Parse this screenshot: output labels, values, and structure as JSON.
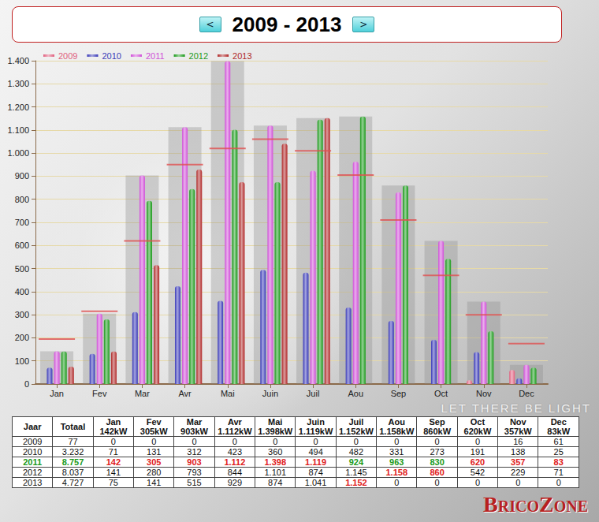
{
  "chart_data": {
    "type": "bar",
    "title": "2009 - 2013",
    "categories": [
      "Jan",
      "Fev",
      "Mar",
      "Avr",
      "Mai",
      "Juin",
      "Juil",
      "Aou",
      "Sep",
      "Oct",
      "Nov",
      "Dec"
    ],
    "series": [
      {
        "name": "2009",
        "color": "#e0607e",
        "values": [
          0,
          0,
          0,
          0,
          0,
          0,
          0,
          0,
          0,
          0,
          16,
          61
        ]
      },
      {
        "name": "2010",
        "color": "#3a3ab8",
        "values": [
          71,
          131,
          312,
          423,
          360,
          494,
          482,
          331,
          273,
          191,
          138,
          25
        ]
      },
      {
        "name": "2011",
        "color": "#d050d8",
        "values": [
          142,
          305,
          903,
          1112,
          1398,
          1119,
          924,
          963,
          830,
          620,
          357,
          83
        ]
      },
      {
        "name": "2012",
        "color": "#1a9a1a",
        "values": [
          141,
          280,
          793,
          844,
          1101,
          874,
          1145,
          1158,
          860,
          542,
          229,
          71
        ]
      },
      {
        "name": "2013",
        "color": "#b02828",
        "values": [
          75,
          141,
          515,
          929,
          874,
          1041,
          1152,
          0,
          0,
          0,
          0,
          0
        ]
      }
    ],
    "max_values": [
      142,
      305,
      903,
      1112,
      1398,
      1119,
      1152,
      1158,
      860,
      620,
      357,
      83
    ],
    "target_values": [
      195,
      315,
      620,
      950,
      1020,
      1060,
      1010,
      905,
      710,
      470,
      300,
      175
    ],
    "ylim": [
      0,
      1400
    ],
    "yticks": [
      0,
      100,
      200,
      300,
      400,
      500,
      600,
      700,
      800,
      900,
      {
        "value": 1000,
        "label": "1.000"
      },
      {
        "value": 1100,
        "label": "1.100"
      },
      {
        "value": 1200,
        "label": "1.200"
      },
      {
        "value": 1300,
        "label": "1.300"
      },
      {
        "value": 1400,
        "label": "1.400"
      }
    ],
    "grid": true,
    "legend": "top-left"
  },
  "nav": {
    "prev": "<",
    "next": ">"
  },
  "table": {
    "header": [
      [
        "Jaar"
      ],
      [
        "Totaal"
      ],
      [
        "Jan",
        "142kW"
      ],
      [
        "Fev",
        "305kW"
      ],
      [
        "Mar",
        "903kW"
      ],
      [
        "Avr",
        "1.112kW"
      ],
      [
        "Mai",
        "1.398kW"
      ],
      [
        "Juin",
        "1.119kW"
      ],
      [
        "Juil",
        "1.152kW"
      ],
      [
        "Aou",
        "1.158kW"
      ],
      [
        "Sep",
        "860kW"
      ],
      [
        "Oct",
        "620kW"
      ],
      [
        "Nov",
        "357kW"
      ],
      [
        "Dec",
        "83kW"
      ]
    ],
    "rows": [
      [
        "2009",
        "77",
        "0",
        "0",
        "0",
        "0",
        "0",
        "0",
        "0",
        "0",
        "0",
        "0",
        "16",
        "61"
      ],
      [
        "2010",
        "3.232",
        "71",
        "131",
        "312",
        "423",
        "360",
        "494",
        "482",
        "331",
        "273",
        "191",
        "138",
        "25"
      ],
      [
        "2011",
        "8.757",
        "142",
        "305",
        "903",
        "1.112",
        "1.398",
        "1.119",
        "924",
        "963",
        "830",
        "620",
        "357",
        "83"
      ],
      [
        "2012",
        "8.037",
        "141",
        "280",
        "793",
        "844",
        "1.101",
        "874",
        "1.145",
        "1.158",
        "860",
        "542",
        "229",
        "71"
      ],
      [
        "2013",
        "4.727",
        "75",
        "141",
        "515",
        "929",
        "874",
        "1.041",
        "1.152",
        "0",
        "0",
        "0",
        "0",
        "0"
      ]
    ]
  },
  "background_text": "LET THERE BE LIGHT",
  "watermark": "BricoZone"
}
